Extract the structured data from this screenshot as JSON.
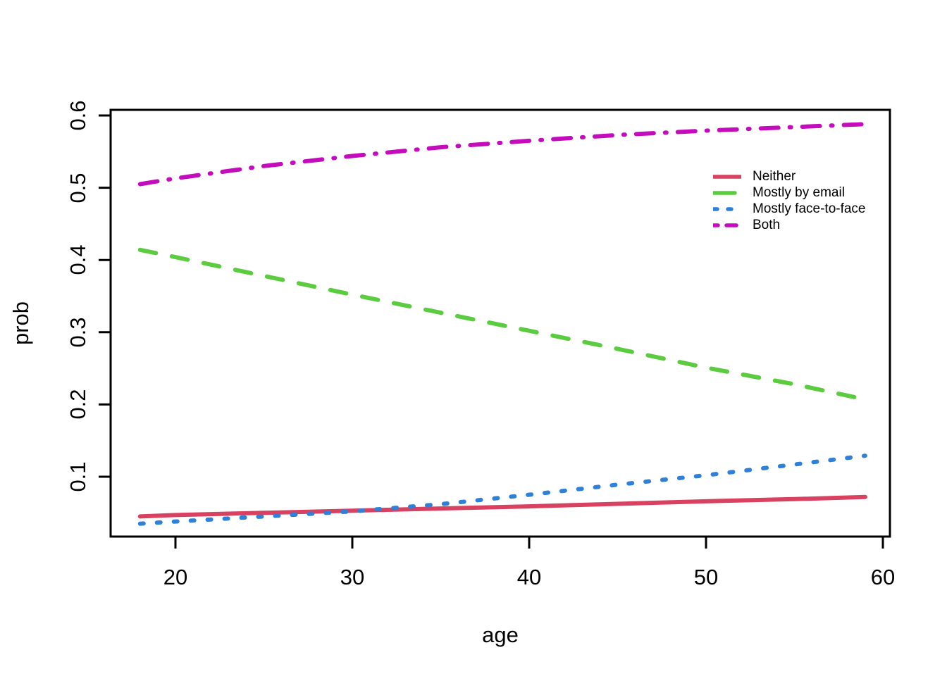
{
  "chart_data": {
    "type": "line",
    "title": "",
    "xlabel": "age",
    "ylabel": "prob",
    "x_ticks": [
      20,
      30,
      40,
      50,
      60
    ],
    "y_ticks": [
      0.1,
      0.2,
      0.3,
      0.4,
      0.5,
      0.6
    ],
    "xlim": [
      16.3,
      60.5
    ],
    "ylim": [
      0.012,
      0.61
    ],
    "grid": false,
    "legend_position": "top-right-inside",
    "x": [
      18,
      20,
      25,
      30,
      35,
      40,
      45,
      50,
      55,
      59
    ],
    "series": [
      {
        "name": "Neither",
        "color": "#D8415F",
        "linetype": "solid",
        "values": [
          0.045,
          0.047,
          0.05,
          0.053,
          0.056,
          0.059,
          0.0625,
          0.066,
          0.069,
          0.072
        ]
      },
      {
        "name": "Mostly by email",
        "color": "#5BCC3F",
        "linetype": "dashed",
        "values": [
          0.414,
          0.404,
          0.378,
          0.352,
          0.327,
          0.302,
          0.277,
          0.251,
          0.228,
          0.207
        ]
      },
      {
        "name": "Mostly face-to-face",
        "color": "#2E80D9",
        "linetype": "dotted",
        "values": [
          0.035,
          0.038,
          0.045,
          0.052,
          0.062,
          0.075,
          0.089,
          0.102,
          0.117,
          0.129
        ]
      },
      {
        "name": "Both",
        "color": "#C40CBC",
        "linetype": "dash-dot",
        "values": [
          0.505,
          0.513,
          0.53,
          0.544,
          0.556,
          0.565,
          0.573,
          0.579,
          0.584,
          0.588
        ]
      }
    ],
    "axis_color": "#000000",
    "background_color": "#ffffff"
  }
}
